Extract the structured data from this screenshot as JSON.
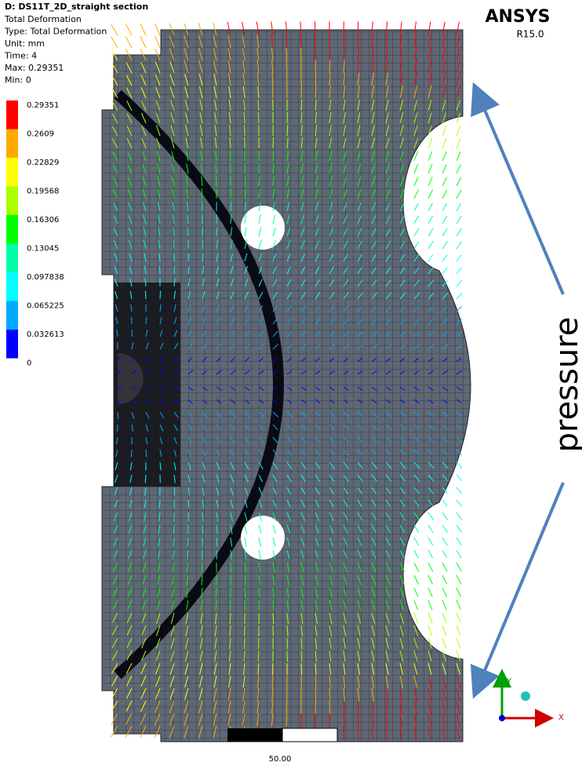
{
  "header": {
    "title": "D: DS11T_2D_straight section",
    "lines": [
      "Total Deformation",
      "Type: Total Deformation",
      "Unit: mm",
      "Time: 4",
      "Max: 0.29351",
      "Min: 0"
    ]
  },
  "legend": {
    "labels": [
      "0.29351",
      "0.2609",
      "0.22829",
      "0.19568",
      "0.16306",
      "0.13045",
      "0.097838",
      "0.065225",
      "0.032613",
      "0"
    ],
    "colors": [
      "#ff0000",
      "#ffaa00",
      "#ffff00",
      "#aaff00",
      "#00ff00",
      "#00ffaa",
      "#00ffff",
      "#00aaff",
      "#0000ff"
    ]
  },
  "brand": {
    "name": "ANSYS",
    "version": "R15.0"
  },
  "annotation": "pressure",
  "scale_bar": "50.00",
  "axes": {
    "x": "X",
    "y": "Y"
  }
}
